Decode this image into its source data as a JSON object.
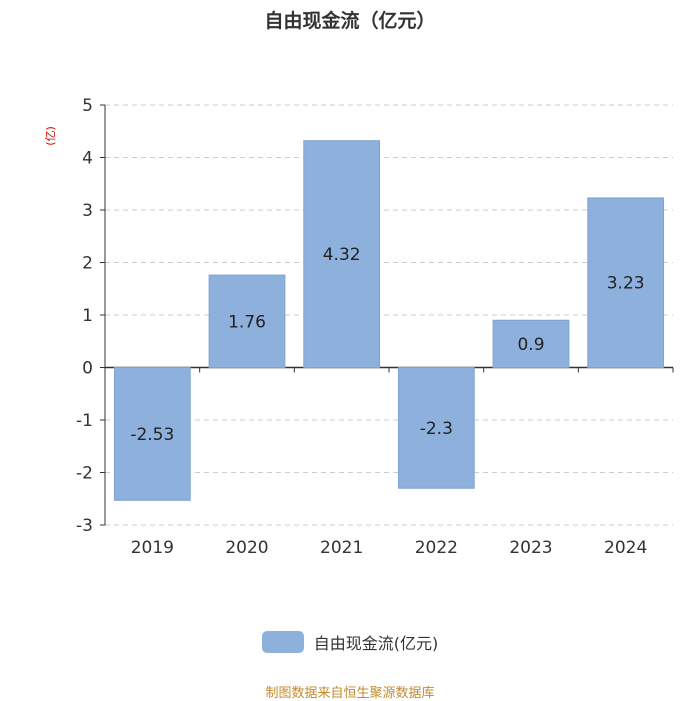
{
  "chart_data": {
    "type": "bar",
    "title": "自由现金流（亿元）",
    "ylabel": "(亿)",
    "categories": [
      "2019",
      "2020",
      "2021",
      "2022",
      "2023",
      "2024"
    ],
    "series": [
      {
        "name": "自由现金流(亿元)",
        "values": [
          -2.53,
          1.76,
          4.32,
          -2.3,
          0.9,
          3.23
        ],
        "data_labels": [
          "-2.53",
          "1.76",
          "4.32",
          "-2.3",
          "0.9",
          "3.23"
        ]
      }
    ],
    "ylim": [
      -3,
      5
    ],
    "yticks": [
      "5",
      "4",
      "3",
      "2",
      "1",
      "0",
      "-1",
      "-2",
      "-3"
    ],
    "ytick_values": [
      5,
      4,
      3,
      2,
      1,
      0,
      -1,
      -2,
      -3
    ],
    "grid": true,
    "legend_position": "bottom"
  },
  "colors": {
    "bar": "#8eb0dc",
    "bar_stroke": "#7da2d3",
    "grid": "#cccccc",
    "axis": "#333333",
    "ylabel": "#e00000",
    "source": "#c48a2c"
  },
  "source_note": "制图数据来自恒生聚源数据库"
}
